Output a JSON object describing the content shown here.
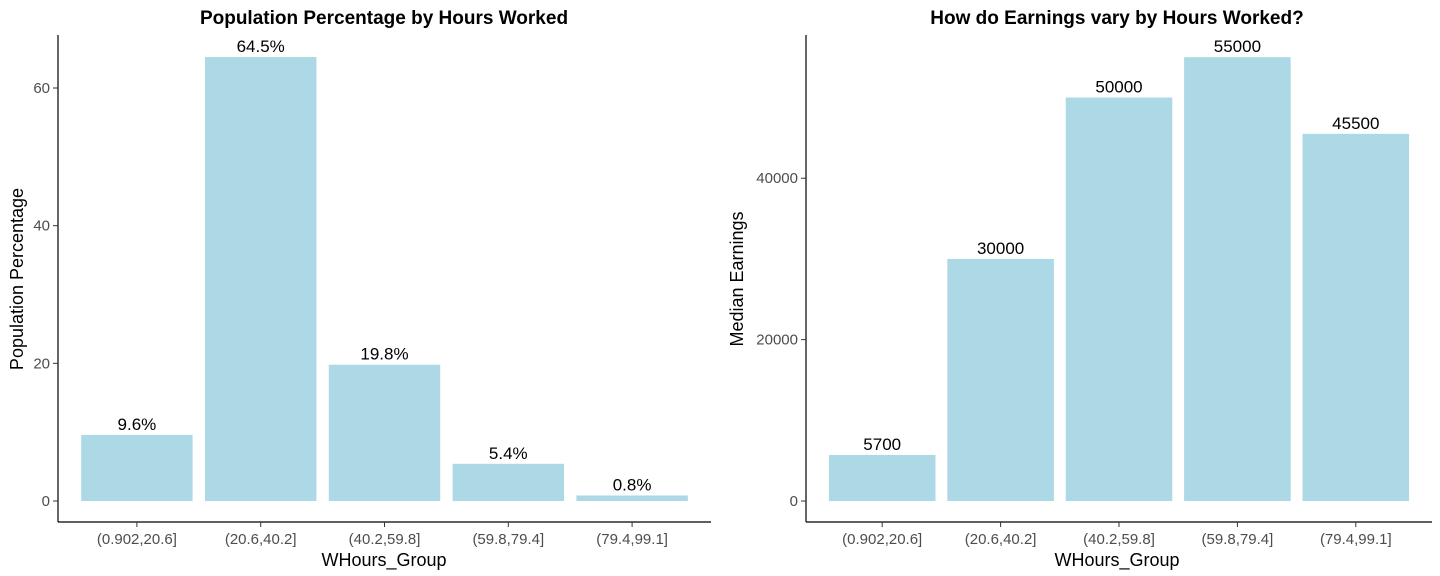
{
  "chart_data": [
    {
      "type": "bar",
      "title": "Population Percentage by Hours Worked",
      "xlabel": "WHours_Group",
      "ylabel": "Population Percentage",
      "categories": [
        "(0.902,20.6]",
        "(20.6,40.2]",
        "(40.2,59.8]",
        "(59.8,79.4]",
        "(79.4,99.1]"
      ],
      "values": [
        9.6,
        64.5,
        19.8,
        5.4,
        0.8
      ],
      "data_labels": [
        "9.6%",
        "64.5%",
        "19.8%",
        "5.4%",
        "0.8%"
      ],
      "yticks": [
        0,
        20,
        40,
        60
      ],
      "ylim": [
        0,
        67.7
      ],
      "bar_color": "#ADD8E6",
      "grid": false,
      "legend": "none"
    },
    {
      "type": "bar",
      "title": "How do Earnings vary by Hours Worked?",
      "xlabel": "WHours_Group",
      "ylabel": "Median Earnings",
      "categories": [
        "(0.902,20.6]",
        "(20.6,40.2]",
        "(40.2,59.8]",
        "(59.8,79.4]",
        "(79.4,99.1]"
      ],
      "values": [
        5700,
        30000,
        50000,
        55000,
        45500
      ],
      "data_labels": [
        "5700",
        "30000",
        "50000",
        "55000",
        "45500"
      ],
      "yticks": [
        0,
        20000,
        40000
      ],
      "ylim": [
        0,
        57750
      ],
      "bar_color": "#ADD8E6",
      "grid": false,
      "legend": "none"
    }
  ]
}
